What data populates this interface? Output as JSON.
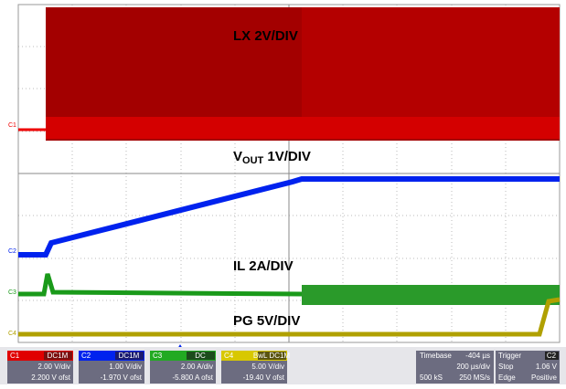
{
  "annotations": {
    "lx": "LX 2V/DIV",
    "vout_main": "V",
    "vout_sub": "OUT",
    "vout_rest": " 1V/DIV",
    "il": "IL 2A/DIV",
    "pg": "PG 5V/DIV"
  },
  "markers": [
    "C1",
    "C2",
    "C3",
    "C4"
  ],
  "channels": [
    {
      "name": "C1",
      "coupling": "DC1M",
      "scale": "2.00 V/div",
      "offset": "2.200 V ofst"
    },
    {
      "name": "C2",
      "coupling": "DC1M",
      "scale": "1.00 V/div",
      "offset": "-1.970 V ofst"
    },
    {
      "name": "C3",
      "coupling": "DC",
      "scale": "2.00 A/div",
      "offset": "-5.800 A ofst"
    },
    {
      "name": "C4",
      "coupling": "BwL DC1M",
      "scale": "5.00 V/div",
      "offset": "-19.40 V ofst"
    }
  ],
  "timebase": {
    "title": "Timebase",
    "delay": "-404 µs",
    "scale": "200 µs/div",
    "samples": "500 kS",
    "rate": "250 MS/s"
  },
  "trigger": {
    "title": "Trigger",
    "source": "C2",
    "mode": "Stop",
    "level": "1.06 V",
    "type": "Edge",
    "slope": "Positive"
  }
}
